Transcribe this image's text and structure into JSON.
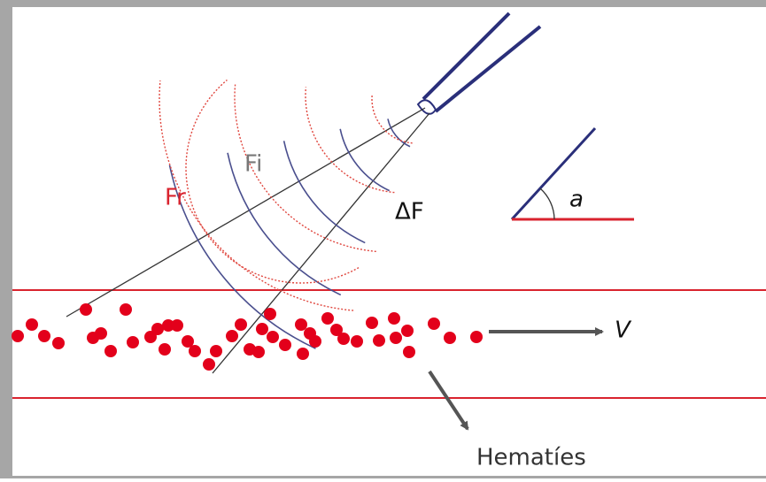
{
  "labels": {
    "fr": "Fr",
    "fi": "Fi",
    "delta_f": "ΔF",
    "angle": "a",
    "velocity": "V",
    "cells": "Hematíes"
  }
}
